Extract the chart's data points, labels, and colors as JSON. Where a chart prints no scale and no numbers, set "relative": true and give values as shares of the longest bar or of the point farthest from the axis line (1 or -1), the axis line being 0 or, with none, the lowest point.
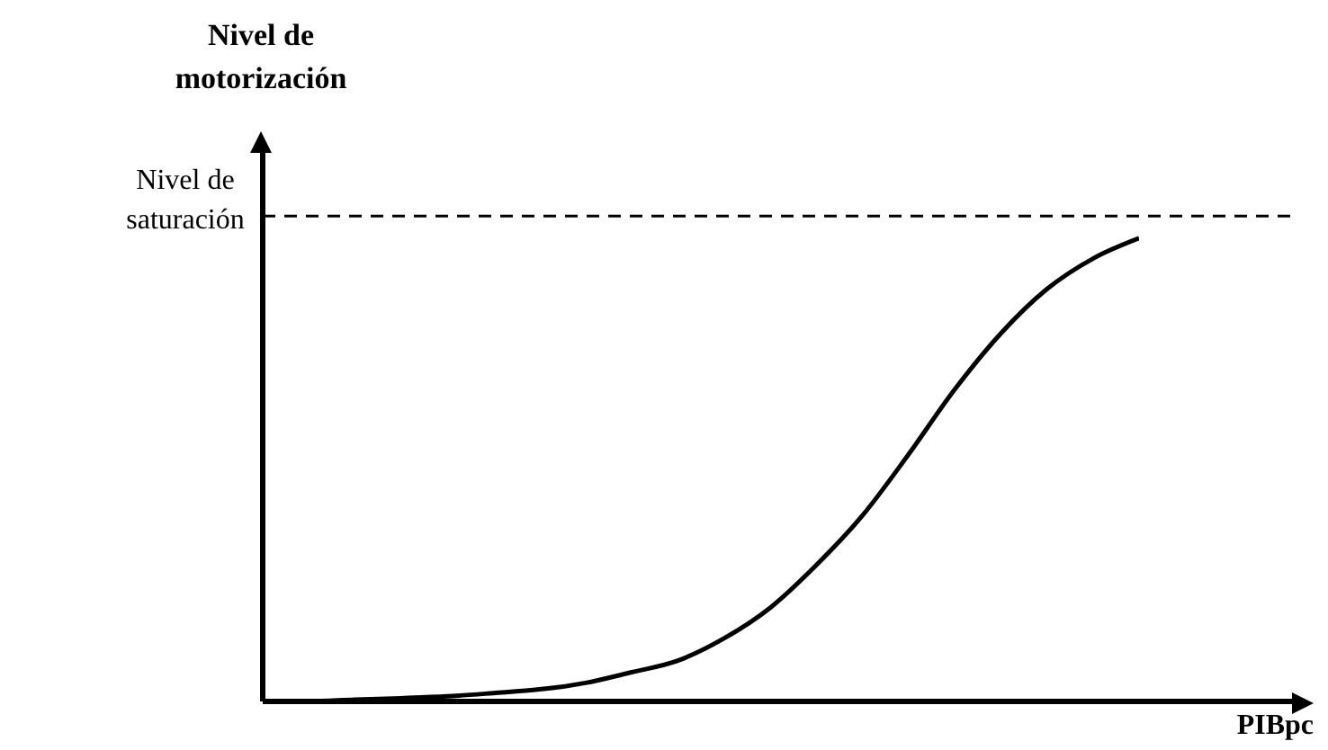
{
  "chart_data": {
    "type": "line",
    "relative": true,
    "ylabel": "Nivel de motorización",
    "xlabel": "PIBpc",
    "categories": [
      null,
      null,
      null,
      null,
      null,
      null,
      null,
      null,
      null,
      null,
      null,
      null,
      null,
      null,
      null,
      null,
      null,
      null,
      null,
      null
    ],
    "series": [
      {
        "color": "#000000",
        "values": [
          0,
          0,
          0.004,
          0.007,
          0.011,
          0.018,
          0.026,
          0.04,
          0.063,
          0.088,
          0.136,
          0.202,
          0.294,
          0.401,
          0.533,
          0.673,
          0.794,
          0.89,
          0.956,
          1
        ]
      }
    ],
    "ref_lines": [
      {
        "axis": "y",
        "value": 1.048,
        "label": "Nivel de saturación",
        "color": "#000000",
        "line_style": "dashed"
      }
    ],
    "marker": "none",
    "line_style": "solid"
  }
}
